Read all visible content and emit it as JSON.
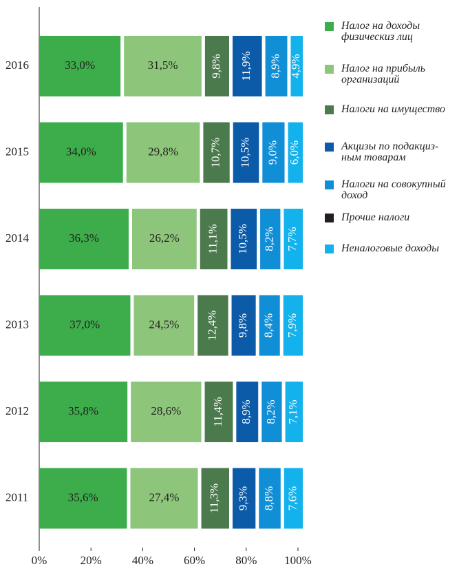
{
  "chart_data": {
    "type": "bar",
    "orientation": "horizontal",
    "stacked": true,
    "categories": [
      "2016",
      "2015",
      "2014",
      "2013",
      "2012",
      "2011"
    ],
    "series": [
      {
        "name": "Налог на доходы\nфизическиз лиц",
        "color": "#3dad4b",
        "values": [
          33.0,
          34.0,
          36.3,
          37.0,
          35.8,
          35.6
        ],
        "value_labels": [
          "33,0%",
          "34,0%",
          "36,3%",
          "37,0%",
          "35,8%",
          "35,6%"
        ]
      },
      {
        "name": "Налог на прибыль\nорганизаций",
        "color": "#8dc67b",
        "values": [
          31.5,
          29.8,
          26.2,
          24.5,
          28.6,
          27.4
        ],
        "value_labels": [
          "31,5%",
          "29,8%",
          "26,2%",
          "24,5%",
          "28,6%",
          "27,4%"
        ]
      },
      {
        "name": "Налоги на имущество",
        "color": "#4b7a4d",
        "values": [
          9.8,
          10.7,
          11.1,
          12.4,
          11.4,
          11.3
        ],
        "value_labels": [
          "9,8%",
          "10,7%",
          "11,1%",
          "12,4%",
          "11,4%",
          "11,3%"
        ]
      },
      {
        "name": "Акцизы по подакциз-\nным товарам",
        "color": "#0b5ba8",
        "values": [
          11.9,
          10.5,
          10.5,
          9.8,
          8.9,
          9.3
        ],
        "value_labels": [
          "11,9%",
          "10,5%",
          "10,5%",
          "9,8%",
          "8,9%",
          "9,3%"
        ]
      },
      {
        "name": "Налоги на совокупный\nдоход",
        "color": "#108fd7",
        "values": [
          8.9,
          9.0,
          8.2,
          8.4,
          8.2,
          8.8
        ],
        "value_labels": [
          "8,9%",
          "9,0%",
          "8,2%",
          "8,4%",
          "8,2%",
          "8,8%"
        ]
      },
      {
        "name": "Прочие налоги",
        "color": "#231f20",
        "values": [
          0,
          0,
          0,
          0,
          0,
          0
        ]
      },
      {
        "name": "Неналоговые доходы",
        "color": "#13b2ed",
        "values": [
          4.9,
          6.0,
          7.7,
          7.9,
          7.1,
          7.6
        ],
        "value_labels": [
          "4,9%",
          "6,0%",
          "7,7%",
          "7,9%",
          "7,1%",
          "7,6%"
        ]
      }
    ],
    "xlim": [
      0,
      100
    ],
    "xticks": [
      {
        "value": 0,
        "label": "0%"
      },
      {
        "value": 20,
        "label": "20%"
      },
      {
        "value": 40,
        "label": "40%"
      },
      {
        "value": 60,
        "label": "60%"
      },
      {
        "value": 80,
        "label": "80%"
      },
      {
        "value": 100,
        "label": "100%"
      }
    ],
    "legend": "right"
  }
}
